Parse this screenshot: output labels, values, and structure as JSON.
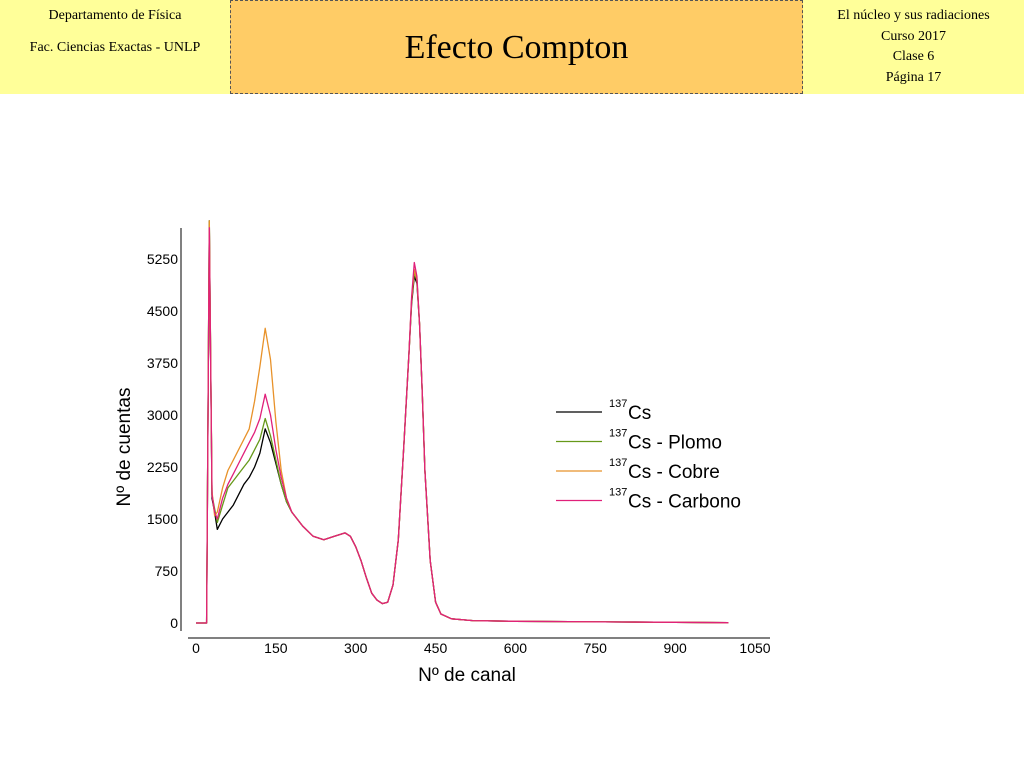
{
  "header": {
    "left_line1": "Departamento de Física",
    "left_line2": "Fac. Ciencias Exactas - UNLP",
    "title": "Efecto Compton",
    "right_line1": "El núcleo y sus radiaciones",
    "right_line2": "Curso 2017",
    "right_line3": "Clase 6",
    "right_line4": "Página 17"
  },
  "chart_data": {
    "type": "line",
    "title": "",
    "xlabel": "Nº de canal",
    "ylabel": "Nº de cuentas",
    "xlim": [
      0,
      1050
    ],
    "ylim": [
      0,
      5250
    ],
    "xticks": [
      0,
      150,
      300,
      450,
      600,
      750,
      900,
      1050
    ],
    "yticks": [
      0,
      750,
      1500,
      2250,
      3000,
      3750,
      4500,
      5250
    ],
    "grid": false,
    "legend_position": "right-center",
    "series": [
      {
        "name": "137Cs",
        "name_sup": "137",
        "name_base": "Cs",
        "color": "#000000",
        "x": [
          0,
          20,
          25,
          30,
          35,
          40,
          50,
          60,
          70,
          80,
          90,
          100,
          110,
          120,
          130,
          140,
          150,
          160,
          170,
          180,
          200,
          220,
          240,
          260,
          280,
          290,
          300,
          310,
          320,
          330,
          340,
          350,
          360,
          370,
          380,
          390,
          400,
          405,
          410,
          415,
          420,
          425,
          430,
          440,
          450,
          460,
          480,
          520,
          600,
          700,
          800,
          900,
          1000
        ],
        "y": [
          0,
          0,
          5800,
          1800,
          1600,
          1350,
          1500,
          1600,
          1700,
          1850,
          2000,
          2100,
          2250,
          2450,
          2800,
          2600,
          2300,
          2000,
          1750,
          1600,
          1400,
          1250,
          1200,
          1250,
          1300,
          1250,
          1100,
          900,
          650,
          430,
          330,
          280,
          300,
          550,
          1200,
          2500,
          3900,
          4600,
          5000,
          4900,
          4300,
          3300,
          2200,
          900,
          300,
          130,
          60,
          35,
          25,
          20,
          15,
          10,
          5
        ]
      },
      {
        "name": "137Cs - Plomo",
        "name_sup": "137",
        "name_base": "Cs - Plomo",
        "color": "#66991a",
        "x": [
          0,
          20,
          25,
          30,
          35,
          40,
          50,
          60,
          70,
          80,
          90,
          100,
          110,
          120,
          130,
          140,
          150,
          160,
          170,
          180,
          200,
          220,
          240,
          260,
          280,
          290,
          300,
          310,
          320,
          330,
          340,
          350,
          360,
          370,
          380,
          390,
          400,
          405,
          410,
          415,
          420,
          425,
          430,
          440,
          450,
          460,
          480,
          520,
          600,
          700,
          800,
          900,
          1000
        ],
        "y": [
          0,
          0,
          5800,
          1850,
          1650,
          1450,
          1700,
          1950,
          2050,
          2150,
          2250,
          2350,
          2500,
          2650,
          2950,
          2700,
          2350,
          2000,
          1750,
          1600,
          1400,
          1250,
          1200,
          1250,
          1300,
          1250,
          1100,
          900,
          650,
          430,
          330,
          280,
          300,
          550,
          1200,
          2500,
          3900,
          4650,
          5050,
          4950,
          4300,
          3300,
          2200,
          900,
          300,
          130,
          60,
          35,
          25,
          20,
          15,
          10,
          5
        ]
      },
      {
        "name": "137Cs - Cobre",
        "name_sup": "137",
        "name_base": "Cs - Cobre",
        "color": "#e8922a",
        "x": [
          0,
          20,
          25,
          30,
          35,
          40,
          50,
          60,
          70,
          80,
          90,
          100,
          110,
          120,
          130,
          140,
          150,
          160,
          170,
          180,
          200,
          220,
          240,
          260,
          280,
          290,
          300,
          310,
          320,
          330,
          340,
          350,
          360,
          370,
          380,
          390,
          400,
          405,
          410,
          415,
          420,
          425,
          430,
          440,
          450,
          460,
          480,
          520,
          600,
          700,
          800,
          900,
          1000
        ],
        "y": [
          0,
          0,
          5800,
          1900,
          1550,
          1600,
          1950,
          2200,
          2350,
          2500,
          2650,
          2800,
          3200,
          3700,
          4250,
          3800,
          2900,
          2200,
          1800,
          1600,
          1400,
          1250,
          1200,
          1250,
          1300,
          1250,
          1100,
          900,
          650,
          430,
          330,
          280,
          300,
          550,
          1200,
          2500,
          3900,
          4650,
          5100,
          4950,
          4300,
          3300,
          2200,
          900,
          300,
          130,
          60,
          35,
          25,
          20,
          15,
          10,
          5
        ]
      },
      {
        "name": "137Cs - Carbono",
        "name_sup": "137",
        "name_base": "Cs - Carbono",
        "color": "#e0207a",
        "x": [
          0,
          20,
          25,
          30,
          35,
          40,
          50,
          60,
          70,
          80,
          90,
          100,
          110,
          120,
          130,
          140,
          150,
          160,
          170,
          180,
          200,
          220,
          240,
          260,
          280,
          290,
          300,
          310,
          320,
          330,
          340,
          350,
          360,
          370,
          380,
          390,
          400,
          405,
          410,
          415,
          420,
          425,
          430,
          440,
          450,
          460,
          480,
          520,
          600,
          700,
          800,
          900,
          1000
        ],
        "y": [
          0,
          0,
          5700,
          1850,
          1600,
          1500,
          1800,
          2000,
          2150,
          2300,
          2450,
          2600,
          2750,
          2950,
          3300,
          3000,
          2500,
          2100,
          1800,
          1600,
          1400,
          1250,
          1200,
          1250,
          1300,
          1250,
          1100,
          900,
          650,
          430,
          330,
          280,
          300,
          550,
          1200,
          2500,
          3900,
          4700,
          5200,
          5000,
          4300,
          3300,
          2200,
          900,
          300,
          130,
          60,
          35,
          25,
          20,
          15,
          10,
          5
        ]
      }
    ]
  }
}
